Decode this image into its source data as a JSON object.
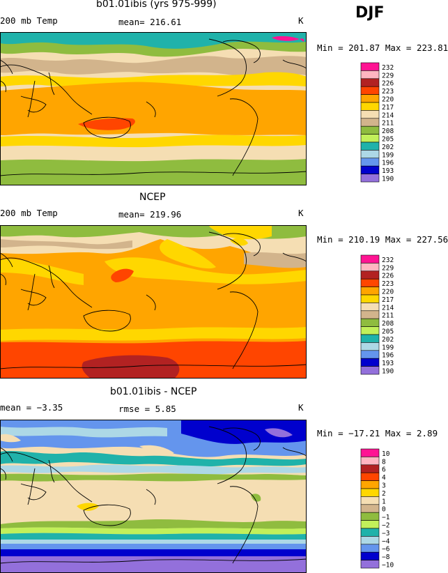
{
  "season": "DJF",
  "panels": [
    {
      "title": "b01.01ibis (yrs 975-999)",
      "left_label": "200 mb Temp",
      "center_label": "mean= 216.61",
      "right_label": "K",
      "minmax": "Min = 201.87 Max = 223.81",
      "labelbar": {
        "labels": [
          "232",
          "229",
          "226",
          "223",
          "220",
          "217",
          "214",
          "211",
          "208",
          "205",
          "202",
          "199",
          "196",
          "193",
          "190"
        ],
        "colors": [
          "#ff1493",
          "#ffb6c1",
          "#b22222",
          "#ff4500",
          "#ffa500",
          "#ffd700",
          "#f5deb3",
          "#d2b48c",
          "#8fbc3f",
          "#c2f05a",
          "#20b2aa",
          "#add8e6",
          "#6495ed",
          "#0000cd",
          "#9370db"
        ]
      }
    },
    {
      "title": "NCEP",
      "left_label": "200 mb Temp",
      "center_label": "mean= 219.96",
      "right_label": "K",
      "minmax": "Min = 210.19 Max = 227.56",
      "labelbar": {
        "labels": [
          "232",
          "229",
          "226",
          "223",
          "220",
          "217",
          "214",
          "211",
          "208",
          "205",
          "202",
          "199",
          "196",
          "193",
          "190"
        ],
        "colors": [
          "#ff1493",
          "#ffb6c1",
          "#b22222",
          "#ff4500",
          "#ffa500",
          "#ffd700",
          "#f5deb3",
          "#d2b48c",
          "#8fbc3f",
          "#c2f05a",
          "#20b2aa",
          "#add8e6",
          "#6495ed",
          "#0000cd",
          "#9370db"
        ]
      }
    },
    {
      "title": "b01.01ibis - NCEP",
      "left_label": "mean =   −3.35",
      "center_label": "rmse =    5.85",
      "right_label": "K",
      "minmax": "Min = −17.21 Max =    2.89",
      "labelbar": {
        "labels": [
          "10",
          "8",
          "6",
          "4",
          "3",
          "2",
          "1",
          "0",
          "−1",
          "−2",
          "−3",
          "−4",
          "−6",
          "−8",
          "−10"
        ],
        "colors": [
          "#ff1493",
          "#ffb6c1",
          "#b22222",
          "#ff4500",
          "#ffa500",
          "#ffd700",
          "#f5deb3",
          "#d2b48c",
          "#8fbc3f",
          "#c2f05a",
          "#20b2aa",
          "#add8e6",
          "#6495ed",
          "#0000cd",
          "#9370db"
        ]
      }
    }
  ]
}
